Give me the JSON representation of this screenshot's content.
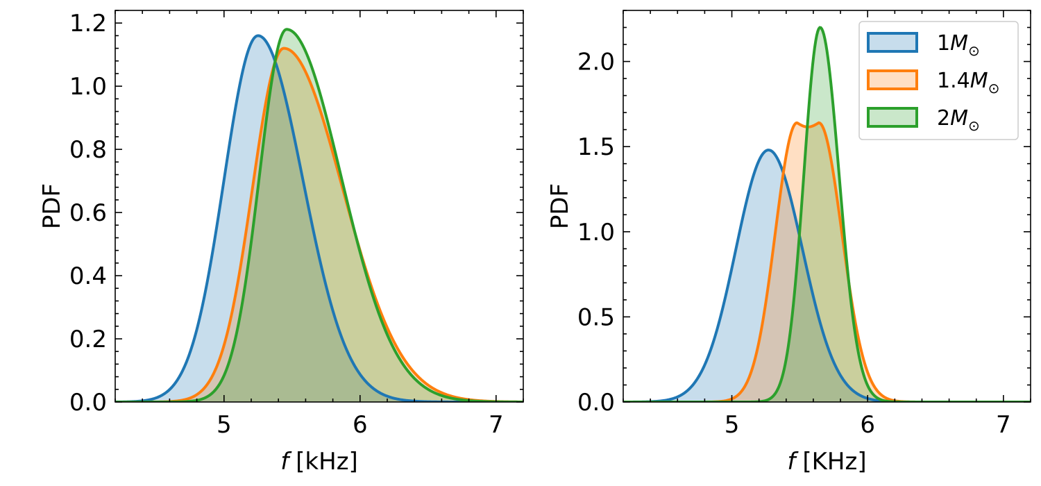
{
  "colors": {
    "blue": "#1f77b4",
    "orange": "#ff7f0e",
    "green": "#2ca02c"
  },
  "chart_data": [
    {
      "type": "area",
      "xlabel_prefix": "f",
      "xlabel_unit": "[kHz]",
      "ylabel": "PDF",
      "xlim": [
        4.2,
        7.2
      ],
      "ylim": [
        0.0,
        1.24
      ],
      "xticks": [
        5,
        6,
        7
      ],
      "xtick_labels": [
        "5",
        "6",
        "7"
      ],
      "yticks": [
        0.0,
        0.2,
        0.4,
        0.6,
        0.8,
        1.0,
        1.2
      ],
      "ytick_labels": [
        "0.0",
        "0.2",
        "0.4",
        "0.6",
        "0.8",
        "1.0",
        "1.2"
      ],
      "series": [
        {
          "name": "1M_sun",
          "color": "#1f77b4",
          "peak_x": 5.25,
          "peak_y": 1.16,
          "sigma_left": 0.25,
          "sigma_right": 0.33
        },
        {
          "name": "1.4M_sun",
          "color": "#ff7f0e",
          "peak_x": 5.44,
          "peak_y": 1.12,
          "sigma_left": 0.23,
          "sigma_right": 0.43
        },
        {
          "name": "2M_sun",
          "color": "#2ca02c",
          "peak_x": 5.46,
          "peak_y": 1.18,
          "sigma_left": 0.2,
          "sigma_right": 0.4
        }
      ],
      "legend": false
    },
    {
      "type": "area",
      "xlabel_prefix": "f",
      "xlabel_unit": "[KHz]",
      "ylabel": "PDF",
      "xlim": [
        4.2,
        7.2
      ],
      "ylim": [
        0.0,
        2.3
      ],
      "xticks": [
        5,
        6,
        7
      ],
      "xtick_labels": [
        "5",
        "6",
        "7"
      ],
      "yticks": [
        0.0,
        0.5,
        1.0,
        1.5,
        2.0
      ],
      "ytick_labels": [
        "0.0",
        "0.5",
        "1.0",
        "1.5",
        "2.0"
      ],
      "series": [
        {
          "name": "1M_sun",
          "color": "#1f77b4",
          "peak_x": 5.27,
          "peak_y": 1.48,
          "sigma_left": 0.24,
          "sigma_right": 0.25
        },
        {
          "name": "1.4M_sun",
          "color": "#ff7f0e",
          "peak_x": 5.56,
          "peak_y": 1.64,
          "sigma_left": 0.16,
          "sigma_right": 0.17,
          "plateau": 0.16
        },
        {
          "name": "2M_sun",
          "color": "#2ca02c",
          "peak_x": 5.65,
          "peak_y": 2.2,
          "sigma_left": 0.12,
          "sigma_right": 0.14
        }
      ],
      "legend": true,
      "legend_position": "top-right",
      "legend_entries": [
        {
          "number": "1",
          "symbol": "M",
          "subscript": "⊙",
          "color": "#1f77b4"
        },
        {
          "number": "1.4",
          "symbol": "M",
          "subscript": "⊙",
          "color": "#ff7f0e"
        },
        {
          "number": "2",
          "symbol": "M",
          "subscript": "⊙",
          "color": "#2ca02c"
        }
      ]
    }
  ]
}
